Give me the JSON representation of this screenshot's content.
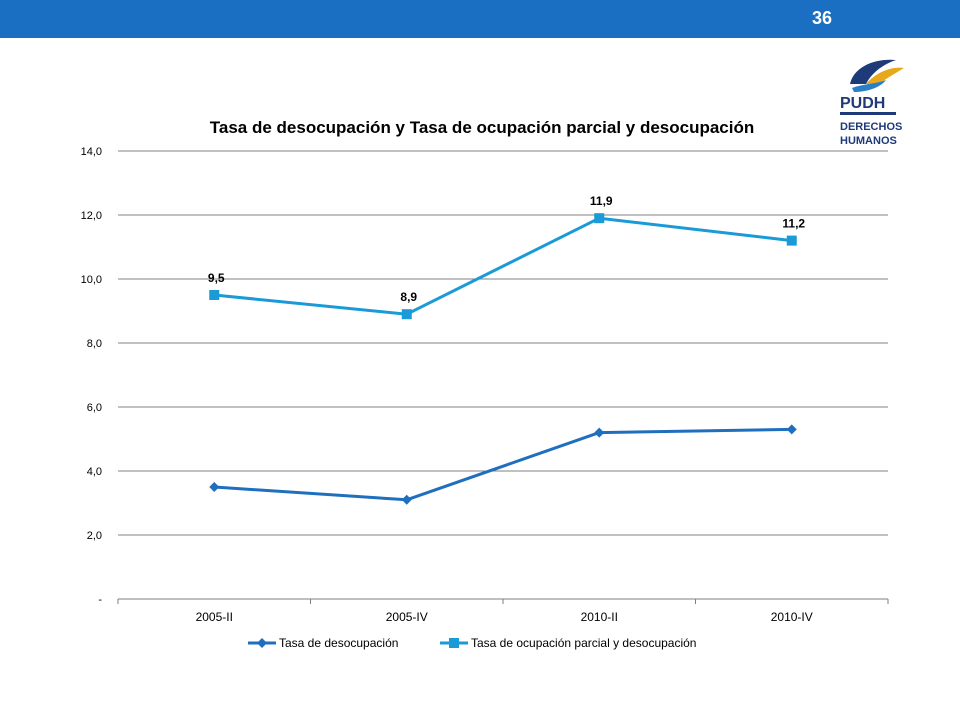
{
  "header": {
    "page_number": "36"
  },
  "logo": {
    "line1": "PUDH",
    "line2": "DERECHOS",
    "line3": "HUMANOS"
  },
  "colors": {
    "topbar": "#1a6fc2",
    "series1": "#1f6fbf",
    "series2": "#1a9ad6",
    "grid": "#808080"
  },
  "chart_data": {
    "type": "line",
    "title": "Tasa de desocupación y Tasa de ocupación parcial y desocupación",
    "categories": [
      "2005-II",
      "2005-IV",
      "2010-II",
      "2010-IV"
    ],
    "y_ticks": [
      "-",
      "2,0",
      "4,0",
      "6,0",
      "8,0",
      "10,0",
      "12,0",
      "14,0"
    ],
    "ylim": [
      0,
      14
    ],
    "grid": true,
    "legend_position": "bottom",
    "series": [
      {
        "name": "Tasa de desocupación",
        "values": [
          3.5,
          3.1,
          5.2,
          5.3
        ],
        "marker": "diamond",
        "color": "#1f6fbf",
        "data_labels": null
      },
      {
        "name": "Tasa de ocupación parcial y desocupación",
        "values": [
          9.5,
          8.9,
          11.9,
          11.2
        ],
        "marker": "square",
        "color": "#1a9ad6",
        "data_labels": [
          "9,5",
          "8,9",
          "11,9",
          "11,2"
        ]
      }
    ]
  }
}
